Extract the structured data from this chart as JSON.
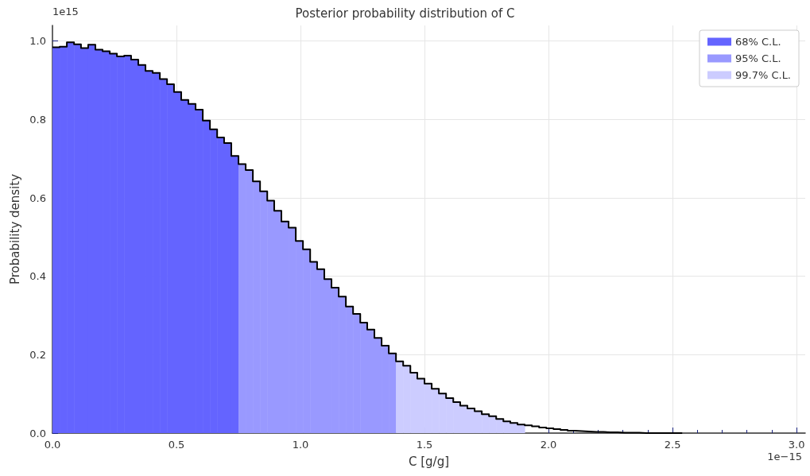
{
  "chart_data": {
    "type": "histogram",
    "title": "Posterior probability distribution of C",
    "xlabel": "C [g/g]",
    "ylabel": "Probability density",
    "annotations": [
      "1e15",
      "1e−15"
    ],
    "bins": [
      0,
      0.029,
      0.058,
      0.087,
      0.115,
      0.144,
      0.173,
      0.202,
      0.231,
      0.26,
      0.289,
      0.317,
      0.346,
      0.375,
      0.404,
      0.433,
      0.462,
      0.49,
      0.519,
      0.548,
      0.577,
      0.606,
      0.635,
      0.664,
      0.692,
      0.721,
      0.75,
      0.779,
      0.808,
      0.837,
      0.866,
      0.894,
      0.923,
      0.952,
      0.981,
      1.01,
      1.039,
      1.067,
      1.096,
      1.125,
      1.154,
      1.183,
      1.212,
      1.241,
      1.269,
      1.298,
      1.327,
      1.356,
      1.385,
      1.414,
      1.443,
      1.471,
      1.5,
      1.529,
      1.558,
      1.587,
      1.616,
      1.644,
      1.673,
      1.702,
      1.731,
      1.76,
      1.789,
      1.818,
      1.846,
      1.875,
      1.904
    ],
    "series": [
      {
        "name": "68% C.L.",
        "color": "#6464ff",
        "values": [
          0.984,
          0.986,
          0.997,
          0.992,
          0.982,
          0.991,
          0.978,
          0.974,
          0.968,
          0.961,
          0.963,
          0.953,
          0.939,
          0.924,
          0.919,
          0.903,
          0.89,
          0.87,
          0.85,
          0.84,
          0.825,
          0.797,
          0.775,
          0.754,
          0.74,
          0.707,
          null,
          null,
          null,
          null,
          null,
          null,
          null,
          null,
          null,
          null,
          null,
          null,
          null,
          null,
          null,
          null,
          null,
          null,
          null,
          null,
          null,
          null,
          null,
          null,
          null,
          null,
          null,
          null,
          null,
          null,
          null,
          null,
          null,
          null,
          null,
          null,
          null,
          null,
          null,
          null
        ]
      },
      {
        "name": "95% C.L.",
        "color": "#9999ff",
        "values": [
          null,
          null,
          null,
          null,
          null,
          null,
          null,
          null,
          null,
          null,
          null,
          null,
          null,
          null,
          null,
          null,
          null,
          null,
          null,
          null,
          null,
          null,
          null,
          null,
          null,
          null,
          0.686,
          0.671,
          0.642,
          0.617,
          0.593,
          0.567,
          0.54,
          0.524,
          0.49,
          0.469,
          0.437,
          0.418,
          0.393,
          0.371,
          0.348,
          0.323,
          0.304,
          0.282,
          0.264,
          0.243,
          0.223,
          0.203,
          null,
          null,
          null,
          null,
          null,
          null,
          null,
          null,
          null,
          null,
          null,
          null,
          null,
          null,
          null,
          null,
          null,
          null
        ]
      },
      {
        "name": "99.7% C.L.",
        "color": "#ccccff",
        "values": [
          null,
          null,
          null,
          null,
          null,
          null,
          null,
          null,
          null,
          null,
          null,
          null,
          null,
          null,
          null,
          null,
          null,
          null,
          null,
          null,
          null,
          null,
          null,
          null,
          null,
          null,
          null,
          null,
          null,
          null,
          null,
          null,
          null,
          null,
          null,
          null,
          null,
          null,
          null,
          null,
          null,
          null,
          null,
          null,
          null,
          null,
          null,
          null,
          0.183,
          0.172,
          0.154,
          0.139,
          0.126,
          0.113,
          0.101,
          0.089,
          0.079,
          0.07,
          0.063,
          0.056,
          0.048,
          0.043,
          0.036,
          0.03,
          0.026,
          0.022
        ]
      },
      {
        "type": "step",
        "color": "#000000",
        "x": [
          0,
          0.029,
          0.058,
          0.087,
          0.115,
          0.144,
          0.173,
          0.202,
          0.231,
          0.26,
          0.289,
          0.317,
          0.346,
          0.375,
          0.404,
          0.433,
          0.462,
          0.49,
          0.519,
          0.548,
          0.577,
          0.606,
          0.635,
          0.664,
          0.692,
          0.721,
          0.75,
          0.779,
          0.808,
          0.837,
          0.866,
          0.894,
          0.923,
          0.952,
          0.981,
          1.01,
          1.039,
          1.067,
          1.096,
          1.125,
          1.154,
          1.183,
          1.212,
          1.241,
          1.269,
          1.298,
          1.327,
          1.356,
          1.385,
          1.414,
          1.443,
          1.471,
          1.5,
          1.529,
          1.558,
          1.587,
          1.616,
          1.644,
          1.673,
          1.702,
          1.731,
          1.76,
          1.789,
          1.818,
          1.846,
          1.875,
          1.904,
          1.933,
          1.962,
          1.991,
          2.02,
          2.048,
          2.077,
          2.106,
          2.135,
          2.164,
          2.193,
          2.221,
          2.25,
          2.279,
          2.308,
          2.337,
          2.366,
          2.395,
          2.424,
          2.452,
          2.481,
          2.51,
          2.539
        ],
        "values": [
          0.984,
          0.984,
          0.986,
          0.997,
          0.992,
          0.982,
          0.991,
          0.978,
          0.974,
          0.968,
          0.961,
          0.963,
          0.953,
          0.939,
          0.924,
          0.919,
          0.903,
          0.89,
          0.87,
          0.85,
          0.84,
          0.825,
          0.797,
          0.775,
          0.754,
          0.74,
          0.707,
          0.686,
          0.671,
          0.642,
          0.617,
          0.593,
          0.567,
          0.54,
          0.524,
          0.49,
          0.469,
          0.437,
          0.418,
          0.393,
          0.371,
          0.348,
          0.323,
          0.304,
          0.282,
          0.264,
          0.243,
          0.223,
          0.203,
          0.183,
          0.172,
          0.154,
          0.139,
          0.126,
          0.113,
          0.101,
          0.089,
          0.079,
          0.07,
          0.063,
          0.056,
          0.048,
          0.043,
          0.036,
          0.03,
          0.026,
          0.022,
          0.02,
          0.017,
          0.014,
          0.012,
          0.01,
          0.008,
          0.006,
          0.005,
          0.004,
          0.003,
          0.003,
          0.002,
          0.002,
          0.001,
          0.001,
          0.001,
          0,
          0,
          0,
          0,
          0,
          0
        ]
      }
    ],
    "xlim": [
      0,
      3.035
    ],
    "ylim": [
      0,
      1.04
    ],
    "xticks": [
      {
        "value": 0,
        "label": "0.0"
      },
      {
        "value": 0.5,
        "label": "0.5"
      },
      {
        "value": 1,
        "label": "1.0"
      },
      {
        "value": 1.5,
        "label": "1.5"
      },
      {
        "value": 2,
        "label": "2.0"
      },
      {
        "value": 2.5,
        "label": "2.5"
      },
      {
        "value": 3,
        "label": "3.0"
      }
    ],
    "yticks": [
      {
        "value": 0,
        "label": "0.0"
      },
      {
        "value": 0.2,
        "label": "0.2"
      },
      {
        "value": 0.4,
        "label": "0.4"
      },
      {
        "value": 0.6,
        "label": "0.6"
      },
      {
        "value": 0.8,
        "label": "0.8"
      },
      {
        "value": 1,
        "label": "1.0"
      }
    ],
    "grid": true,
    "legend": "top right"
  }
}
